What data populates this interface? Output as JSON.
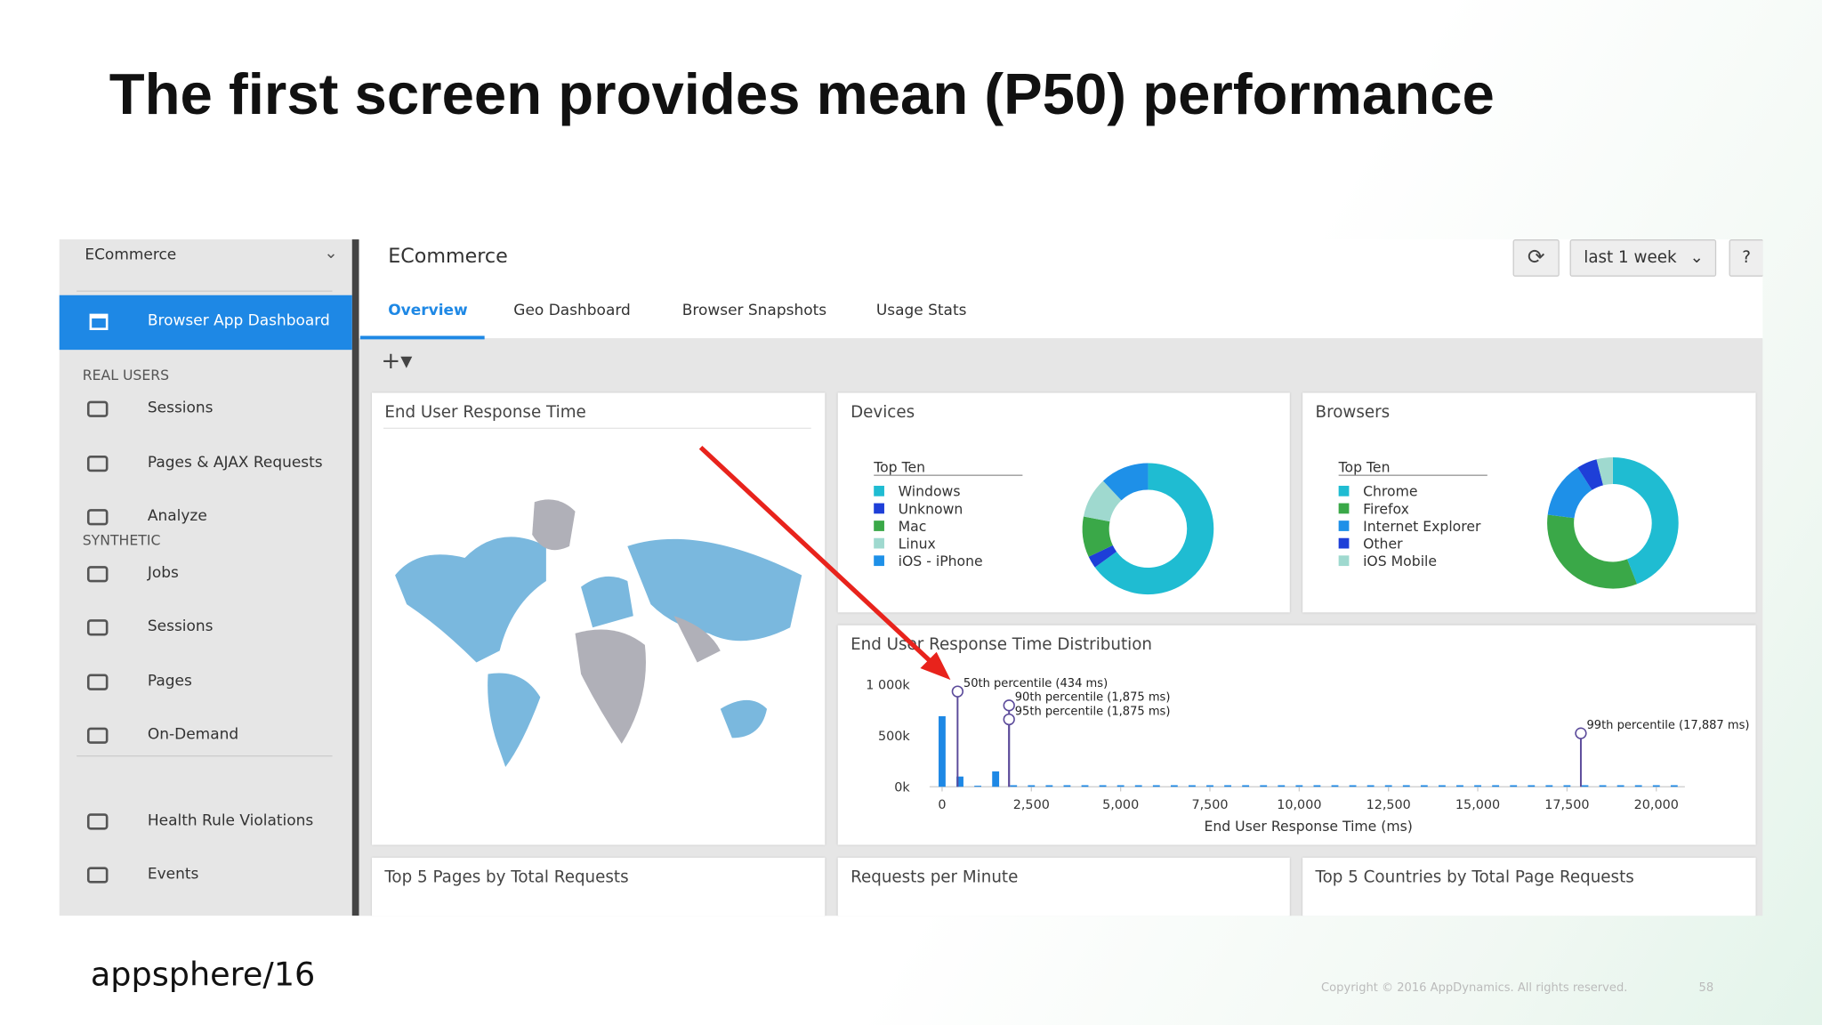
{
  "slide": {
    "title": "The first screen provides mean (P50) performance",
    "brand": "appsphere",
    "edition": "/16",
    "copyright": "Copyright © 2016 AppDynamics. All rights reserved.",
    "page": "58"
  },
  "sidebar": {
    "app": "ECommerce",
    "active": "Browser App Dashboard",
    "sections": [
      {
        "heading": "REAL USERS",
        "items": [
          "Sessions",
          "Pages & AJAX Requests",
          "Analyze"
        ]
      },
      {
        "heading": "SYNTHETIC",
        "items": [
          "Jobs",
          "Sessions",
          "Pages",
          "On-Demand"
        ]
      }
    ],
    "other_items": [
      "Health Rule Violations",
      "Events"
    ]
  },
  "header": {
    "title": "ECommerce",
    "time_range": "last 1 week",
    "help": "?"
  },
  "tabs": [
    "Overview",
    "Geo Dashboard",
    "Browser Snapshots",
    "Usage Stats"
  ],
  "panels": {
    "map_title": "End User Response Time",
    "bottom_titles": [
      "Top 5 Pages by Total Requests",
      "Requests per Minute",
      "Top 5 Countries by Total Page Requests"
    ]
  },
  "chart_data": [
    {
      "type": "pie",
      "title": "Devices",
      "legend_title": "Top Ten",
      "categories": [
        "Windows",
        "Unknown",
        "Mac",
        "Linux",
        "iOS - iPhone"
      ],
      "values": [
        65,
        3,
        10,
        10,
        12
      ],
      "colors": [
        "#1fbcd2",
        "#1e3fd8",
        "#3aa848",
        "#9fd9cf",
        "#1e90e8"
      ]
    },
    {
      "type": "pie",
      "title": "Browsers",
      "legend_title": "Top Ten",
      "categories": [
        "Chrome",
        "Firefox",
        "Internet Explorer",
        "Other",
        "iOS Mobile"
      ],
      "values": [
        44,
        33,
        14,
        5,
        4
      ],
      "colors": [
        "#1fbcd2",
        "#3aa848",
        "#1e90e8",
        "#1e3fd8",
        "#9fd9cf"
      ]
    },
    {
      "type": "bar",
      "title": "End User Response Time Distribution",
      "x_label": "End User Response Time (ms)",
      "color": "#1e88e5",
      "x": [
        0,
        500,
        1000,
        1500,
        2000,
        2500,
        3000,
        3500,
        4000,
        4500,
        5000,
        5500,
        6000,
        6500,
        7000,
        7500,
        8000,
        8500,
        9000,
        9500,
        10000,
        10500,
        11000,
        11500,
        12000,
        12500,
        13000,
        13500,
        14000,
        14500,
        15000,
        15500,
        16000,
        16500,
        17000,
        17500,
        18000,
        18500,
        19000,
        19500,
        20000,
        20500
      ],
      "values": [
        690000,
        100000,
        10000,
        150000,
        15000,
        15000,
        15000,
        15000,
        15000,
        15000,
        15000,
        15000,
        15000,
        15000,
        15000,
        15000,
        15000,
        15000,
        15000,
        15000,
        15000,
        15000,
        15000,
        15000,
        15000,
        15000,
        15000,
        15000,
        15000,
        15000,
        15000,
        15000,
        15000,
        15000,
        15000,
        15000,
        15000,
        15000,
        15000,
        15000,
        15000,
        15000
      ],
      "xlim": [
        -350,
        20800
      ],
      "ylim": [
        0,
        1000000
      ],
      "xticks": [
        0,
        {
          "value": 2500,
          "label": "2,500"
        },
        {
          "value": 5000,
          "label": "5,000"
        },
        {
          "value": 7500,
          "label": "7,500"
        },
        {
          "value": 10000,
          "label": "10,000"
        },
        {
          "value": 12500,
          "label": "12,500"
        },
        {
          "value": 15000,
          "label": "15,000"
        },
        {
          "value": 17500,
          "label": "17,500"
        },
        {
          "value": 20000,
          "label": "20,000"
        }
      ],
      "yticks": [
        {
          "value": 0,
          "label": "0k"
        },
        {
          "value": 500000,
          "label": "500k"
        },
        {
          "value": 1000000,
          "label": "1 000k"
        }
      ],
      "annotations": [
        {
          "x": 434,
          "text": "50th percentile (434 ms)"
        },
        {
          "x": 1875,
          "text": "90th percentile (1,875 ms)"
        },
        {
          "x": 1875,
          "text": "95th percentile (1,875 ms)"
        },
        {
          "x": 17887,
          "text": "99th percentile (17,887 ms)"
        }
      ]
    }
  ]
}
